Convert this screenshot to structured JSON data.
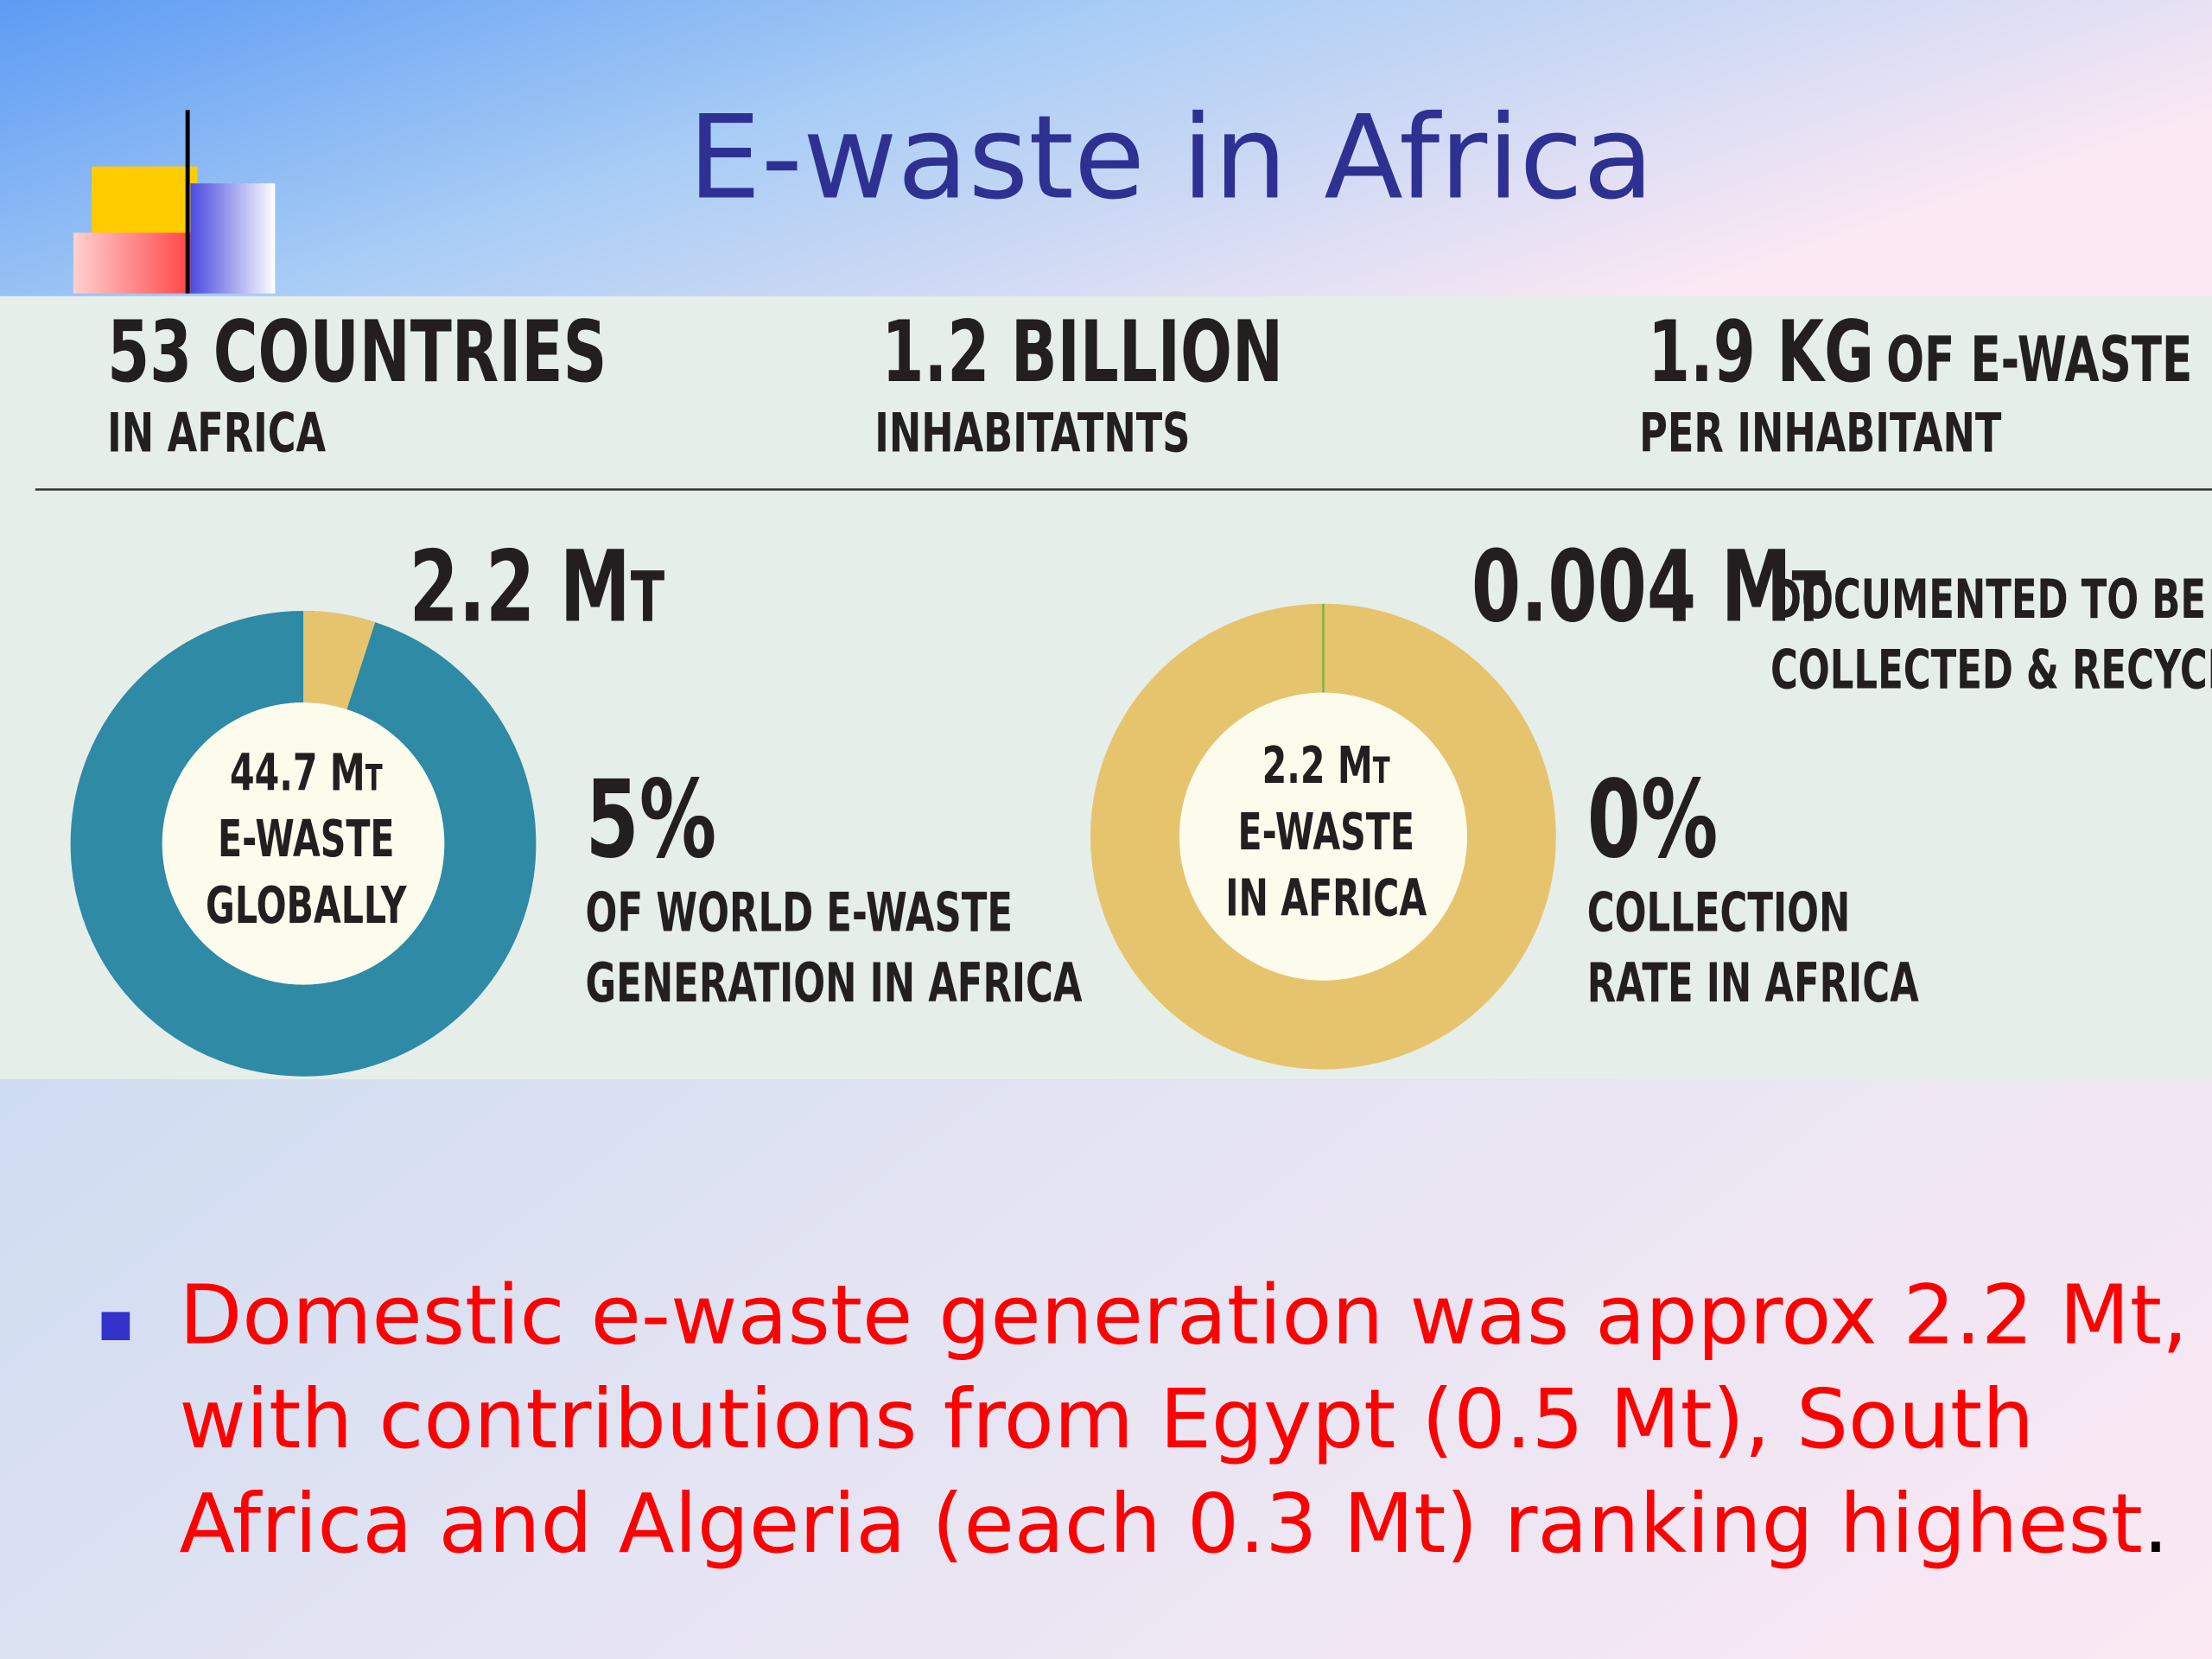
{
  "title": "E-waste in Africa",
  "stats": [
    {
      "value": "53 COUNTRIES",
      "label": "IN AFRICA"
    },
    {
      "value": "1.2 BILLION",
      "label": "INHABITATNTS"
    },
    {
      "value": "1.9 KG",
      "suffix": "OF E-WASTE",
      "label": "PER INHABITANT"
    }
  ],
  "donuts": [
    {
      "top": "2.2 Mt",
      "center": [
        "44.7 Mt",
        "E-WASTE",
        "GLOBALLY"
      ],
      "share": {
        "value": 5,
        "label": "5%"
      },
      "caption": [
        "OF WORLD E-WASTE",
        "GENERATION IN AFRICA"
      ],
      "colors": {
        "share": "#e6c46e",
        "rest": "#2e8aa5"
      }
    },
    {
      "top": "0.004 Mt",
      "note": [
        "DOCUMENTED TO BE",
        "COLLECTED & RECYCLED"
      ],
      "center": [
        "2.2 Mt",
        "E-WASTE",
        "IN AFRICA"
      ],
      "share": {
        "value": 0,
        "label": "0%"
      },
      "caption": [
        "COLLECTION",
        "RATE IN AFRICA"
      ],
      "colors": {
        "share": "#7cb342",
        "rest": "#e6c46e"
      }
    }
  ],
  "bullet": {
    "lines": [
      "Domestic e-waste generation was approx 2.2 Mt,",
      "with contributions from Egypt (0.5 Mt), South",
      "Africa and Algeria (each 0.3 Mt) ranking highest"
    ],
    "end": "."
  }
}
